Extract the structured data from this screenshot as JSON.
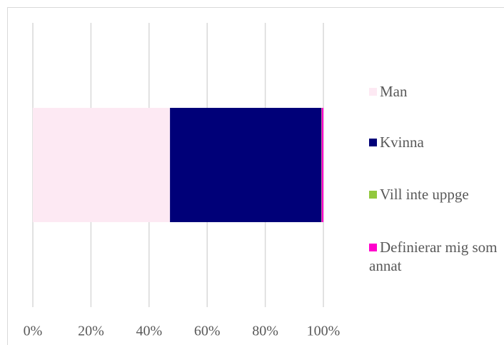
{
  "chart_data": {
    "type": "stacked_bar_horizontal",
    "categories": [
      null
    ],
    "series": [
      {
        "name": "Man",
        "color": "#fde9f3",
        "values": [
          47.2
        ]
      },
      {
        "name": "Kvinna",
        "color": "#000078",
        "values": [
          52.1
        ]
      },
      {
        "name": "Vill inte uppge",
        "color": "#92c83e",
        "values": [
          0.1
        ]
      },
      {
        "name": "Definierar mig som annat",
        "color": "#ff00cc",
        "values": [
          0.6
        ]
      }
    ],
    "xlim": [
      0,
      100
    ],
    "xticks": [
      {
        "value": 0,
        "label": "0%"
      },
      {
        "value": 20,
        "label": "20%"
      },
      {
        "value": 40,
        "label": "40%"
      },
      {
        "value": 60,
        "label": "60%"
      },
      {
        "value": 80,
        "label": "80%"
      },
      {
        "value": 100,
        "label": "100%"
      }
    ],
    "grid": true,
    "legend": "right"
  }
}
